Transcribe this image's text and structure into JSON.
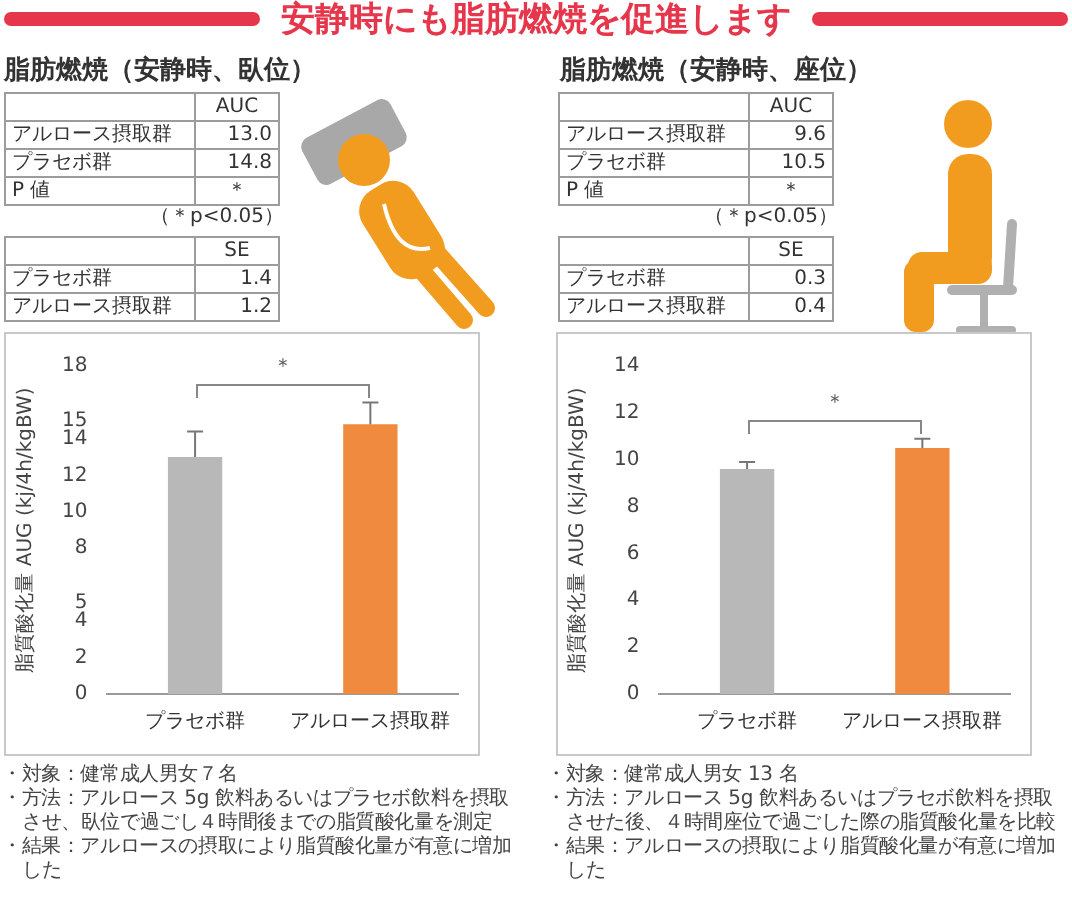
{
  "chart_data": [
    {
      "type": "other",
      "title": "安静時にも脂肪燃焼を促進します"
    },
    {
      "type": "bar",
      "title": "脂肪燃焼（安静時、臥位）",
      "categories": [
        "プラセボ群",
        "アルロース摂取群"
      ],
      "values": [
        13.0,
        14.8
      ],
      "colors": [
        "#b8b8b8",
        "#ef8a3e"
      ],
      "errors": [
        [
          13.0,
          14.4
        ],
        [
          14.8,
          16.0
        ]
      ],
      "ylim": [
        0,
        18
      ],
      "yticks": [
        0,
        2,
        4,
        5,
        8,
        10,
        12,
        14,
        15,
        18
      ],
      "ylabel": "脂質酸化量 AUG (kj/4h/kgBW)",
      "annotations": [
        "AUC",
        "アルロース摂取群",
        "13.0",
        "プラセボ群",
        "14.8",
        "P 値",
        "＊",
        "（＊p<0.05）",
        "SE",
        "プラセボ群",
        "1.4",
        "アルロース摂取群",
        "1.2",
        "＊",
        "・対象：健常成人男女７名",
        "・方法：アルロース 5g 飲料あるいはプラセボ飲料を摂取させ、臥位で過ごし４時間後までの脂質酸化量を測定",
        "・結果：アルロースの摂取により脂質酸化量が有意に増加した"
      ]
    },
    {
      "type": "bar",
      "title": "脂肪燃焼（安静時、座位）",
      "categories": [
        "プラセボ群",
        "アルロース摂取群"
      ],
      "values": [
        9.6,
        10.5
      ],
      "colors": [
        "#b8b8b8",
        "#ef8a3e"
      ],
      "errors": [
        [
          9.6,
          9.9
        ],
        [
          10.5,
          10.9
        ]
      ],
      "ylim": [
        0,
        14
      ],
      "yticks": [
        0,
        2,
        4,
        6,
        8,
        10,
        12,
        14
      ],
      "ylabel": "脂質酸化量 AUG (kj/4h/kgBW)",
      "annotations": [
        "AUC",
        "アルロース摂取群",
        "9.6",
        "プラセボ群",
        "10.5",
        "P 値",
        "＊",
        "（＊p<0.05）",
        "SE",
        "プラセボ群",
        "0.3",
        "アルロース摂取群",
        "0.4",
        "＊",
        "・対象：健常成人男女 13 名",
        "・方法：アルロース 5g 飲料あるいはプラセボ飲料を摂取させた後、４時間座位で過ごした際の脂質酸化量を比較",
        "・結果：アルロースの摂取により脂質酸化量が有意に増加した"
      ]
    }
  ]
}
